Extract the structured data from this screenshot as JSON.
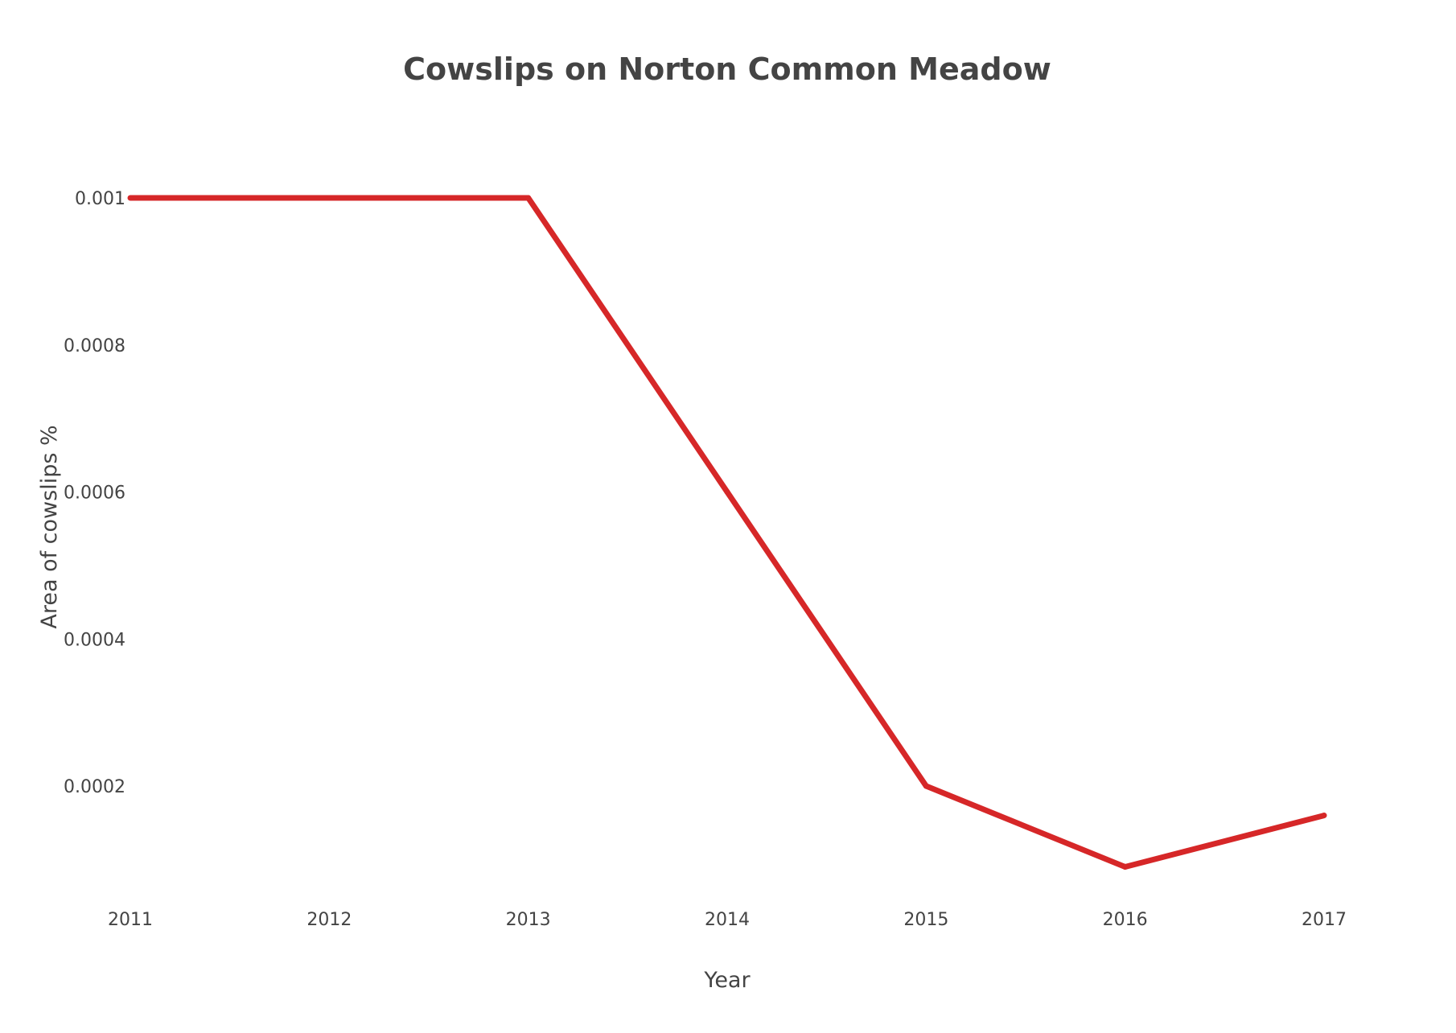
{
  "chart_data": {
    "type": "line",
    "title": "Cowslips on Norton Common Meadow",
    "xlabel": "Year",
    "ylabel": "Area of cowslips %",
    "x": [
      "2011",
      "2012",
      "2013",
      "2014",
      "2015",
      "2016",
      "2017"
    ],
    "series": [
      {
        "color": "#d62728",
        "values": [
          0.001,
          0.001,
          0.001,
          0.0006,
          0.0002,
          9e-05,
          0.00016
        ]
      }
    ],
    "yticks": [
      0.0002,
      0.0004,
      0.0006,
      0.0008,
      0.001
    ],
    "ytick_labels": [
      "0.0002",
      "0.0004",
      "0.0006",
      "0.0008",
      "0.001"
    ],
    "ylim": [
      5e-05,
      0.0011
    ],
    "grid": false,
    "legend": "none"
  }
}
